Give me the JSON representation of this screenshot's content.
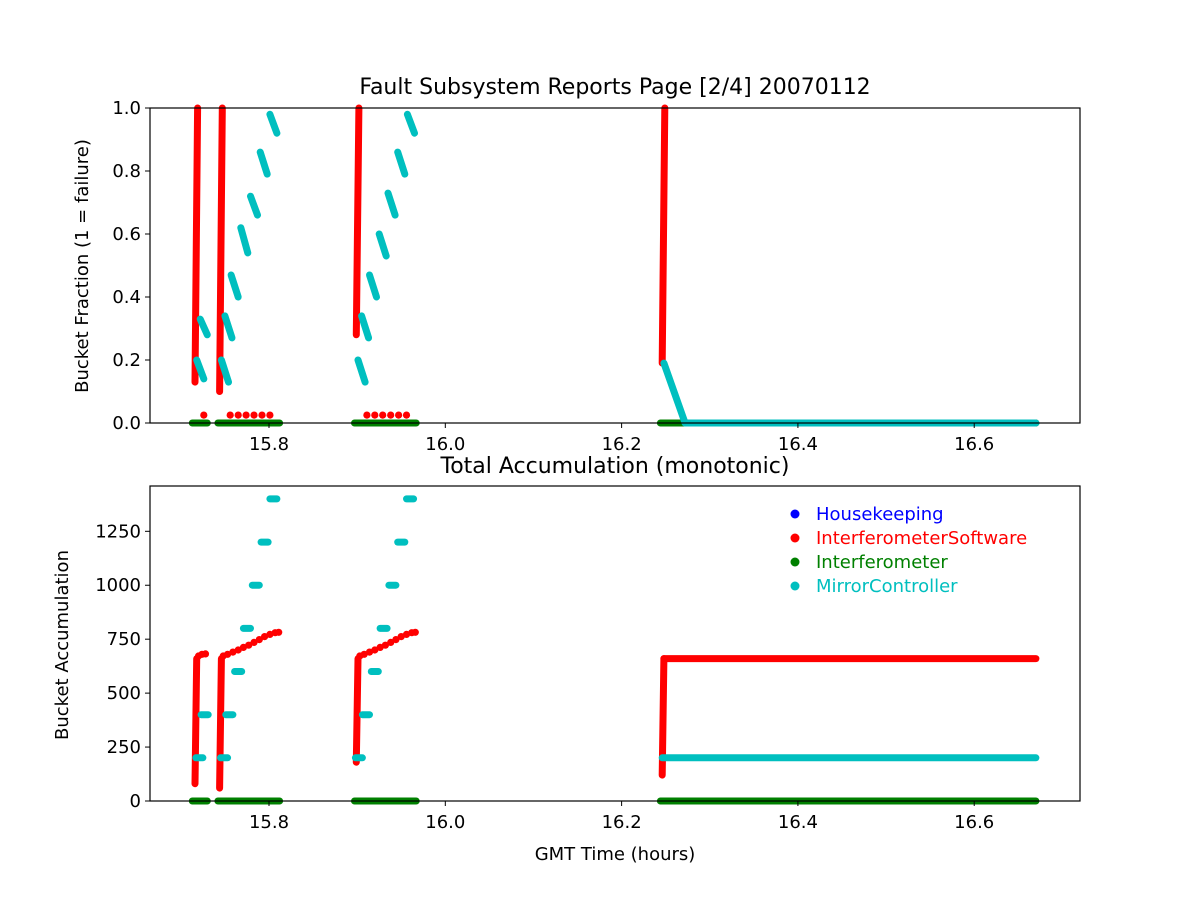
{
  "chart_data": [
    {
      "type": "scatter",
      "title": "Fault Subsystem Reports Page [2/4] 20070112",
      "xlabel": "",
      "ylabel": "Bucket Fraction (1 = failure)",
      "xlim": [
        15.665,
        16.72
      ],
      "ylim": [
        0.0,
        1.0
      ],
      "xticks": [
        "15.8",
        "16.0",
        "16.2",
        "16.4",
        "16.6"
      ],
      "xtick_values": [
        15.8,
        16.0,
        16.2,
        16.4,
        16.6
      ],
      "yticks": [
        "0.0",
        "0.2",
        "0.4",
        "0.6",
        "0.8",
        "1.0"
      ],
      "ytick_values": [
        0.0,
        0.2,
        0.4,
        0.6,
        0.8,
        1.0
      ],
      "grid": false,
      "series": [
        {
          "name": "InterferometerSoftware",
          "color": "#ff0000",
          "segments": [
            {
              "x": [
                15.716,
                15.719
              ],
              "y": [
                0.13,
                1.0
              ]
            },
            {
              "x": [
                15.744,
                15.747
              ],
              "y": [
                0.1,
                1.0
              ]
            },
            {
              "x": [
                15.899,
                15.902
              ],
              "y": [
                0.28,
                1.0
              ]
            },
            {
              "x": [
                16.246,
                16.249
              ],
              "y": [
                0.19,
                1.0
              ]
            }
          ],
          "points": [
            {
              "x": 15.726,
              "y": 0.025
            },
            {
              "x": 15.756,
              "y": 0.025
            },
            {
              "x": 15.765,
              "y": 0.025
            },
            {
              "x": 15.774,
              "y": 0.025
            },
            {
              "x": 15.783,
              "y": 0.025
            },
            {
              "x": 15.792,
              "y": 0.025
            },
            {
              "x": 15.801,
              "y": 0.025
            },
            {
              "x": 15.911,
              "y": 0.025
            },
            {
              "x": 15.92,
              "y": 0.025
            },
            {
              "x": 15.929,
              "y": 0.025
            },
            {
              "x": 15.938,
              "y": 0.025
            },
            {
              "x": 15.947,
              "y": 0.025
            },
            {
              "x": 15.956,
              "y": 0.025
            }
          ]
        },
        {
          "name": "Interferometer",
          "color": "#008000",
          "segments": [
            {
              "x": [
                15.713,
                15.73
              ],
              "y": [
                0.0,
                0.0
              ]
            },
            {
              "x": [
                15.742,
                15.812
              ],
              "y": [
                0.0,
                0.0
              ]
            },
            {
              "x": [
                15.897,
                15.967
              ],
              "y": [
                0.0,
                0.0
              ]
            },
            {
              "x": [
                16.244,
                16.67
              ],
              "y": [
                0.0,
                0.0
              ]
            }
          ]
        },
        {
          "name": "MirrorController",
          "color": "#00bfbf",
          "segments": [
            {
              "x": [
                15.718,
                15.726
              ],
              "y": [
                0.2,
                0.14
              ]
            },
            {
              "x": [
                15.722,
                15.73
              ],
              "y": [
                0.33,
                0.28
              ]
            },
            {
              "x": [
                15.746,
                15.754
              ],
              "y": [
                0.2,
                0.13
              ]
            },
            {
              "x": [
                15.75,
                15.758
              ],
              "y": [
                0.34,
                0.27
              ]
            },
            {
              "x": [
                15.757,
                15.765
              ],
              "y": [
                0.47,
                0.4
              ]
            },
            {
              "x": [
                15.768,
                15.776
              ],
              "y": [
                0.62,
                0.54
              ]
            },
            {
              "x": [
                15.779,
                15.787
              ],
              "y": [
                0.72,
                0.66
              ]
            },
            {
              "x": [
                15.79,
                15.798
              ],
              "y": [
                0.86,
                0.79
              ]
            },
            {
              "x": [
                15.801,
                15.809
              ],
              "y": [
                0.98,
                0.92
              ]
            },
            {
              "x": [
                15.901,
                15.909
              ],
              "y": [
                0.2,
                0.13
              ]
            },
            {
              "x": [
                15.905,
                15.913
              ],
              "y": [
                0.34,
                0.27
              ]
            },
            {
              "x": [
                15.914,
                15.922
              ],
              "y": [
                0.47,
                0.4
              ]
            },
            {
              "x": [
                15.925,
                15.933
              ],
              "y": [
                0.6,
                0.53
              ]
            },
            {
              "x": [
                15.935,
                15.943
              ],
              "y": [
                0.73,
                0.66
              ]
            },
            {
              "x": [
                15.946,
                15.954
              ],
              "y": [
                0.86,
                0.79
              ]
            },
            {
              "x": [
                15.957,
                15.965
              ],
              "y": [
                0.98,
                0.92
              ]
            },
            {
              "x": [
                16.248,
                16.272
              ],
              "y": [
                0.19,
                0.0
              ]
            },
            {
              "x": [
                16.272,
                16.67
              ],
              "y": [
                0.0,
                0.0
              ]
            }
          ]
        }
      ]
    },
    {
      "type": "scatter",
      "title": "Total Accumulation (monotonic)",
      "xlabel": "GMT Time (hours)",
      "ylabel": "Bucket Accumulation",
      "xlim": [
        15.665,
        16.72
      ],
      "ylim": [
        0,
        1460
      ],
      "xticks": [
        "15.8",
        "16.0",
        "16.2",
        "16.4",
        "16.6"
      ],
      "xtick_values": [
        15.8,
        16.0,
        16.2,
        16.4,
        16.6
      ],
      "yticks": [
        "0",
        "250",
        "500",
        "750",
        "1000",
        "1250"
      ],
      "ytick_values": [
        0,
        250,
        500,
        750,
        1000,
        1250
      ],
      "grid": false,
      "legend": {
        "placement": "top-right",
        "entries": [
          {
            "label": "Housekeeping",
            "color": "#0000ff"
          },
          {
            "label": "InterferometerSoftware",
            "color": "#ff0000"
          },
          {
            "label": "Interferometer",
            "color": "#008000"
          },
          {
            "label": "MirrorController",
            "color": "#00bfbf"
          }
        ]
      },
      "series": [
        {
          "name": "InterferometerSoftware",
          "color": "#ff0000",
          "segments": [
            {
              "x": [
                15.716,
                15.718
              ],
              "y": [
                80,
                660
              ]
            },
            {
              "x": [
                15.744,
                15.746
              ],
              "y": [
                60,
                660
              ]
            },
            {
              "x": [
                15.899,
                15.901
              ],
              "y": [
                180,
                660
              ]
            },
            {
              "x": [
                16.246,
                16.248
              ],
              "y": [
                120,
                660
              ]
            },
            {
              "x": [
                16.248,
                16.67
              ],
              "y": [
                660,
                660
              ]
            }
          ],
          "points": [
            {
              "x": 15.72,
              "y": 672
            },
            {
              "x": 15.724,
              "y": 680
            },
            {
              "x": 15.728,
              "y": 682
            },
            {
              "x": 15.748,
              "y": 672
            },
            {
              "x": 15.753,
              "y": 680
            },
            {
              "x": 15.759,
              "y": 690
            },
            {
              "x": 15.765,
              "y": 700
            },
            {
              "x": 15.771,
              "y": 712
            },
            {
              "x": 15.777,
              "y": 722
            },
            {
              "x": 15.783,
              "y": 735
            },
            {
              "x": 15.789,
              "y": 748
            },
            {
              "x": 15.795,
              "y": 762
            },
            {
              "x": 15.801,
              "y": 772
            },
            {
              "x": 15.807,
              "y": 780
            },
            {
              "x": 15.811,
              "y": 782
            },
            {
              "x": 15.903,
              "y": 672
            },
            {
              "x": 15.908,
              "y": 680
            },
            {
              "x": 15.914,
              "y": 690
            },
            {
              "x": 15.92,
              "y": 700
            },
            {
              "x": 15.926,
              "y": 712
            },
            {
              "x": 15.932,
              "y": 722
            },
            {
              "x": 15.938,
              "y": 735
            },
            {
              "x": 15.944,
              "y": 748
            },
            {
              "x": 15.95,
              "y": 762
            },
            {
              "x": 15.956,
              "y": 772
            },
            {
              "x": 15.962,
              "y": 780
            },
            {
              "x": 15.966,
              "y": 782
            }
          ]
        },
        {
          "name": "Interferometer",
          "color": "#008000",
          "segments": [
            {
              "x": [
                15.713,
                15.73
              ],
              "y": [
                0,
                0
              ]
            },
            {
              "x": [
                15.742,
                15.812
              ],
              "y": [
                0,
                0
              ]
            },
            {
              "x": [
                15.897,
                15.967
              ],
              "y": [
                0,
                0
              ]
            },
            {
              "x": [
                16.244,
                16.67
              ],
              "y": [
                0,
                0
              ]
            }
          ]
        },
        {
          "name": "MirrorController",
          "color": "#00bfbf",
          "segments": [
            {
              "x": [
                15.717,
                15.725
              ],
              "y": [
                200,
                200
              ]
            },
            {
              "x": [
                15.723,
                15.731
              ],
              "y": [
                400,
                400
              ]
            },
            {
              "x": [
                15.745,
                15.753
              ],
              "y": [
                200,
                200
              ]
            },
            {
              "x": [
                15.751,
                15.759
              ],
              "y": [
                400,
                400
              ]
            },
            {
              "x": [
                15.761,
                15.769
              ],
              "y": [
                600,
                600
              ]
            },
            {
              "x": [
                15.771,
                15.779
              ],
              "y": [
                800,
                800
              ]
            },
            {
              "x": [
                15.781,
                15.789
              ],
              "y": [
                1000,
                1000
              ]
            },
            {
              "x": [
                15.791,
                15.799
              ],
              "y": [
                1200,
                1200
              ]
            },
            {
              "x": [
                15.801,
                15.809
              ],
              "y": [
                1400,
                1400
              ]
            },
            {
              "x": [
                15.898,
                15.906
              ],
              "y": [
                200,
                200
              ]
            },
            {
              "x": [
                15.906,
                15.914
              ],
              "y": [
                400,
                400
              ]
            },
            {
              "x": [
                15.916,
                15.924
              ],
              "y": [
                600,
                600
              ]
            },
            {
              "x": [
                15.926,
                15.934
              ],
              "y": [
                800,
                800
              ]
            },
            {
              "x": [
                15.936,
                15.944
              ],
              "y": [
                1000,
                1000
              ]
            },
            {
              "x": [
                15.946,
                15.954
              ],
              "y": [
                1200,
                1200
              ]
            },
            {
              "x": [
                15.956,
                15.964
              ],
              "y": [
                1400,
                1400
              ]
            },
            {
              "x": [
                16.246,
                16.67
              ],
              "y": [
                200,
                200
              ]
            }
          ]
        }
      ]
    }
  ]
}
